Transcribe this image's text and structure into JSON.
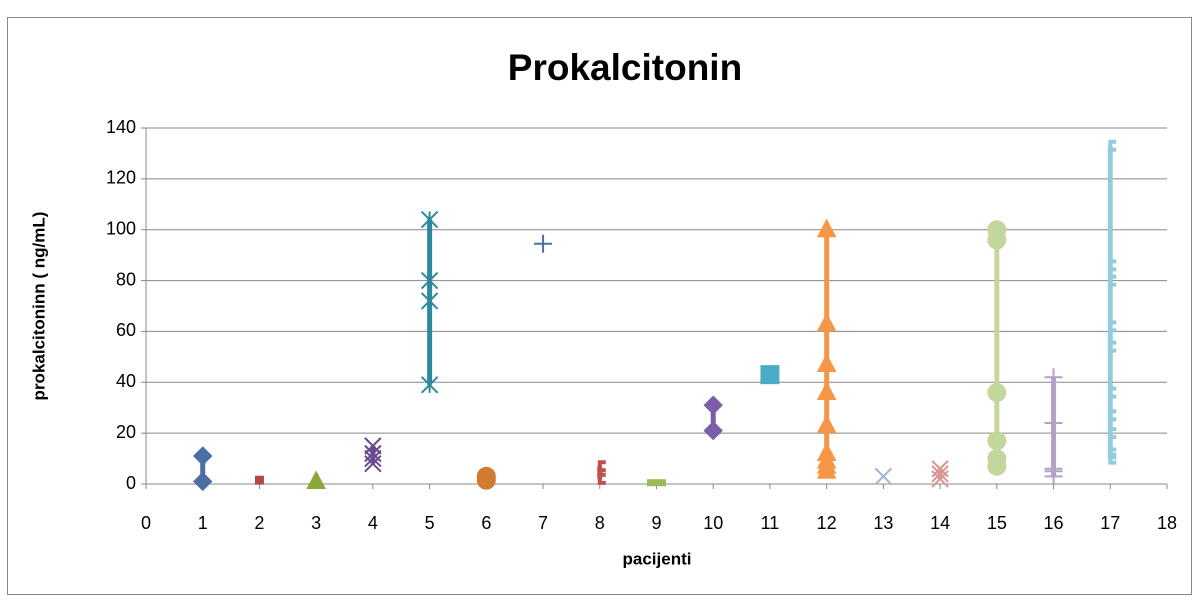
{
  "chart_data": {
    "type": "scatter",
    "title": "Prokalcitonin",
    "x_label": "pacijenti",
    "y_label": "prokalcitoninn ( ng/mL)",
    "xlim": [
      0,
      18
    ],
    "xticks": [
      0,
      1,
      2,
      3,
      4,
      5,
      6,
      7,
      8,
      9,
      10,
      11,
      12,
      13,
      14,
      15,
      16,
      17,
      18
    ],
    "ylim": [
      0,
      140
    ],
    "yticks": [
      0,
      20,
      40,
      60,
      80,
      100,
      120,
      140
    ],
    "grid": true,
    "series": [
      {
        "color": "#4a6fa5",
        "marker": "diamond",
        "x": [
          1,
          1
        ],
        "values": [
          11,
          1
        ]
      },
      {
        "color": "#b54a44",
        "marker": "square-small",
        "x": [
          2
        ],
        "values": [
          1.5
        ]
      },
      {
        "color": "#8aa83a",
        "marker": "triangle",
        "x": [
          3
        ],
        "values": [
          1
        ]
      },
      {
        "color": "#6a4a8f",
        "marker": "x",
        "x": [
          4,
          4,
          4,
          4
        ],
        "values": [
          15,
          12,
          10,
          8
        ]
      },
      {
        "color": "#2d8a9e",
        "marker": "star",
        "x": [
          5,
          5,
          5,
          5
        ],
        "values": [
          104,
          80,
          72,
          39
        ]
      },
      {
        "color": "#d27a30",
        "marker": "circle",
        "x": [
          6,
          6
        ],
        "values": [
          3,
          1.5
        ]
      },
      {
        "color": "#4a6fa5",
        "marker": "plus",
        "x": [
          7
        ],
        "values": [
          94.5
        ]
      },
      {
        "color": "#c0504d",
        "marker": "bracket",
        "x": [
          8,
          8
        ],
        "values": [
          7,
          2
        ]
      },
      {
        "color": "#9bbb59",
        "marker": "dash",
        "x": [
          9
        ],
        "values": [
          0.5
        ]
      },
      {
        "color": "#7b5ea7",
        "marker": "diamond",
        "x": [
          10,
          10
        ],
        "values": [
          31,
          21
        ]
      },
      {
        "color": "#4bacc6",
        "marker": "square",
        "x": [
          11
        ],
        "values": [
          43
        ]
      },
      {
        "color": "#f79646",
        "marker": "triangle",
        "x": [
          12,
          12,
          12,
          12,
          12,
          12,
          12,
          12,
          12
        ],
        "values": [
          100,
          63,
          47,
          36,
          23,
          12,
          9,
          7,
          5
        ]
      },
      {
        "color": "#9fb6d5",
        "marker": "x",
        "x": [
          13
        ],
        "values": [
          3
        ]
      },
      {
        "color": "#d99694",
        "marker": "x",
        "x": [
          14,
          14,
          14
        ],
        "values": [
          6,
          4,
          2
        ]
      },
      {
        "color": "#c3d69b",
        "marker": "circle",
        "x": [
          15,
          15,
          15,
          15,
          15,
          15
        ],
        "values": [
          100,
          96,
          36,
          17,
          10,
          7
        ]
      },
      {
        "color": "#b3a2c7",
        "marker": "plus",
        "x": [
          16,
          16,
          16,
          16,
          16
        ],
        "values": [
          42,
          24,
          6,
          5,
          3
        ]
      },
      {
        "color": "#93cddd",
        "marker": "bracket",
        "x": [
          17,
          17,
          17,
          17,
          17,
          17,
          17,
          17,
          17,
          17
        ],
        "values": [
          133,
          86,
          80,
          62,
          54,
          36,
          27,
          20,
          12,
          10
        ]
      }
    ]
  }
}
